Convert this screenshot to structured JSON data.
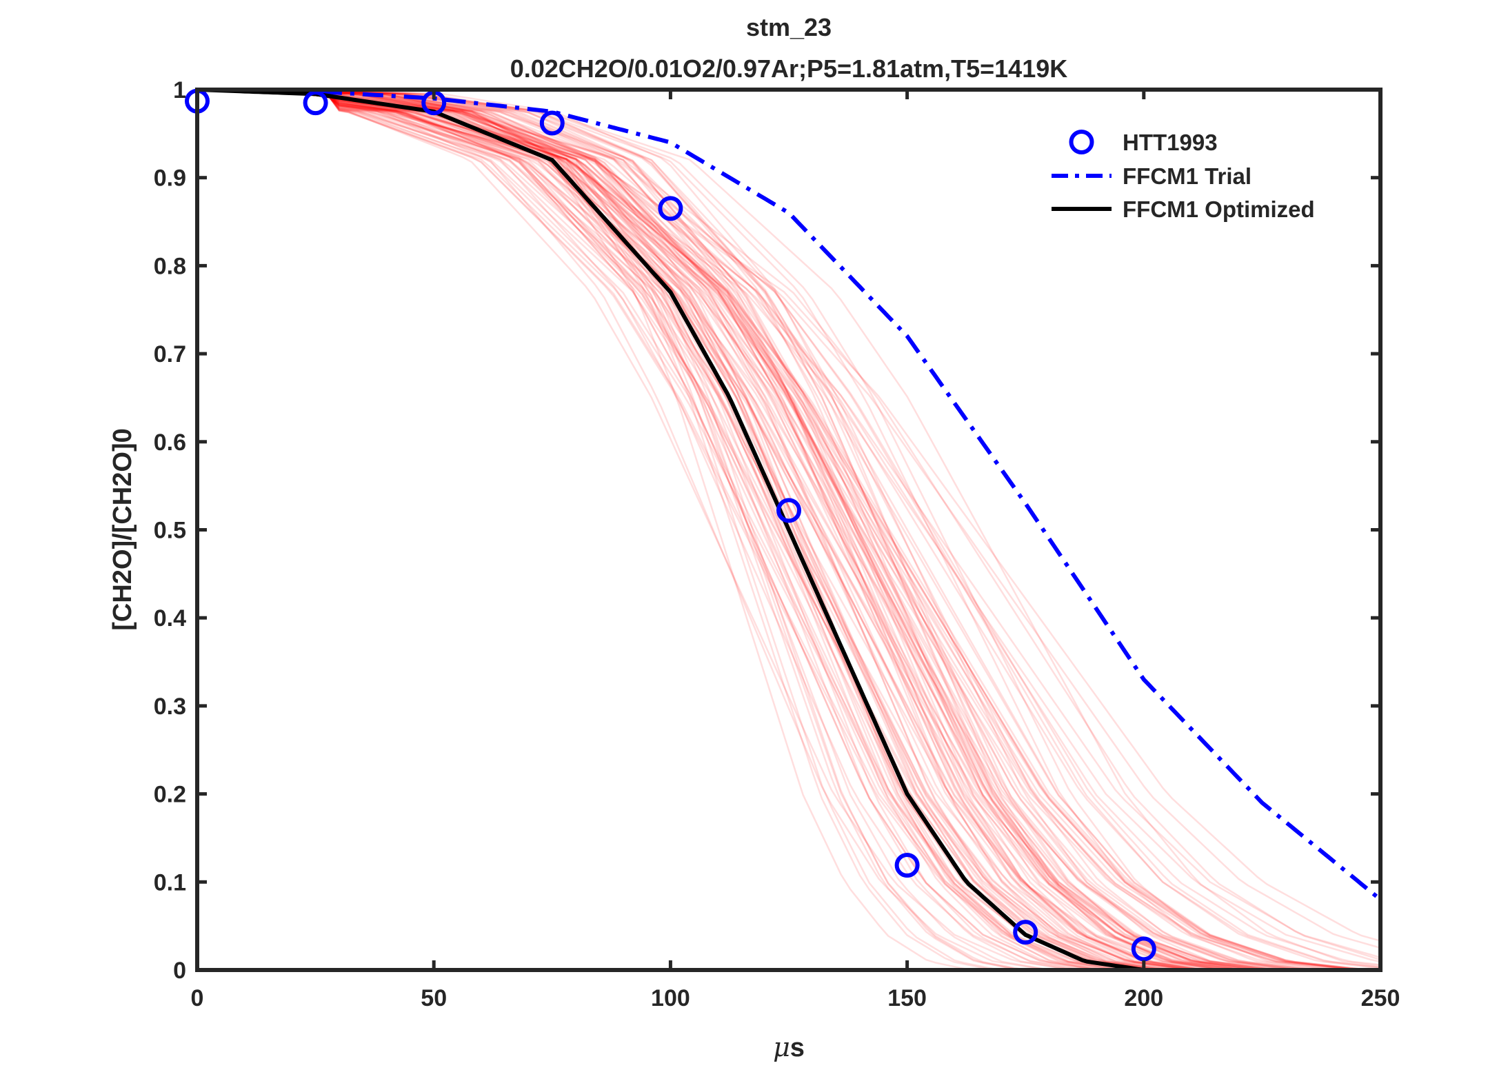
{
  "chart_data": {
    "type": "line",
    "title": "stm_23",
    "subtitle": "0.02CH2O/0.01O2/0.97Ar;P5=1.81atm,T5=1419K",
    "xlabel_mu": "μ",
    "xlabel_rest": "s",
    "ylabel": "[CH2O]/[CH2O]0",
    "xlim": [
      0,
      250
    ],
    "ylim": [
      0,
      1
    ],
    "xticks": [
      "0",
      "50",
      "100",
      "150",
      "200",
      "250"
    ],
    "yticks": [
      "0",
      "0.1",
      "0.2",
      "0.3",
      "0.4",
      "0.5",
      "0.6",
      "0.7",
      "0.8",
      "0.9",
      "1"
    ],
    "grid": false,
    "legend_position": "top-right",
    "series": [
      {
        "name": "HTT1993",
        "style": "markers-circle",
        "color": "#0000ff",
        "x": [
          0,
          25,
          50,
          75,
          100,
          125,
          150,
          175,
          200
        ],
        "y": [
          0.987,
          0.985,
          0.985,
          0.962,
          0.865,
          0.522,
          0.119,
          0.043,
          0.024
        ]
      },
      {
        "name": "FFCM1 Trial",
        "style": "dash-dot",
        "color": "#0000ff",
        "x": [
          0,
          25,
          50,
          75,
          100,
          125,
          150,
          175,
          200,
          225,
          250
        ],
        "y": [
          1.0,
          0.998,
          0.99,
          0.975,
          0.94,
          0.86,
          0.72,
          0.53,
          0.33,
          0.19,
          0.08
        ]
      },
      {
        "name": "FFCM1 Optimized",
        "style": "solid",
        "color": "#000000",
        "x": [
          0,
          25,
          50,
          75,
          100,
          112.5,
          125,
          137.5,
          150,
          162.5,
          175,
          187.5,
          200,
          225,
          250
        ],
        "y": [
          1.0,
          0.995,
          0.975,
          0.92,
          0.77,
          0.65,
          0.5,
          0.35,
          0.2,
          0.1,
          0.04,
          0.01,
          0.0,
          0.0,
          0.0
        ]
      }
    ],
    "ensemble": {
      "color": "#ff0000",
      "count": 120,
      "x_shift_range": [
        -22,
        35
      ]
    }
  }
}
